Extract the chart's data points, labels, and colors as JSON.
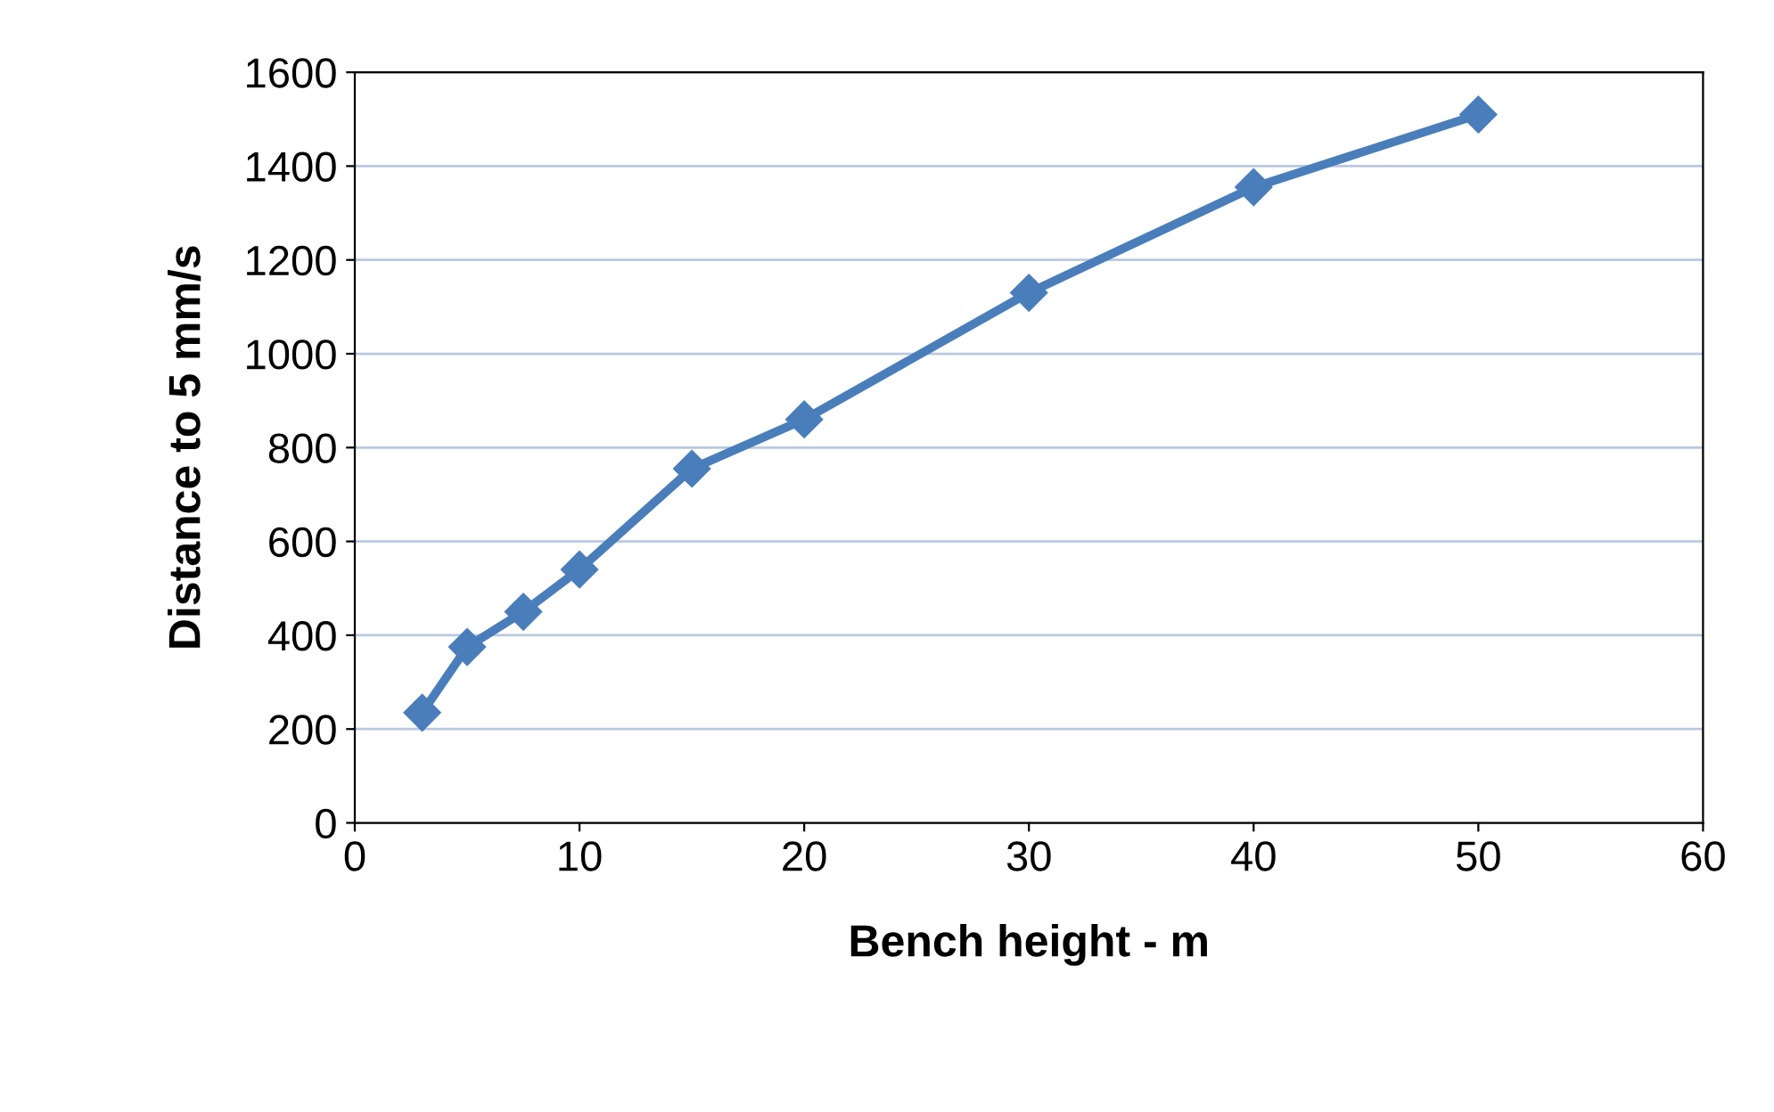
{
  "chart_data": {
    "type": "line",
    "xlabel": "Bench height - m",
    "ylabel": "Distance to 5 mm/s",
    "x": [
      3,
      5,
      7.5,
      10,
      15,
      20,
      30,
      40,
      50
    ],
    "series": [
      {
        "color": "#4a7ebb",
        "values": [
          235,
          375,
          450,
          540,
          755,
          860,
          1130,
          1355,
          1510
        ]
      }
    ],
    "xlim": [
      0,
      60
    ],
    "xticks": [
      0,
      10,
      20,
      30,
      40,
      50,
      60
    ],
    "ylim": [
      0,
      1600
    ],
    "yticks": [
      0,
      200,
      400,
      600,
      800,
      1000,
      1200,
      1400,
      1600
    ],
    "grid": "y",
    "marker": "diamond",
    "line_style": "solid"
  }
}
